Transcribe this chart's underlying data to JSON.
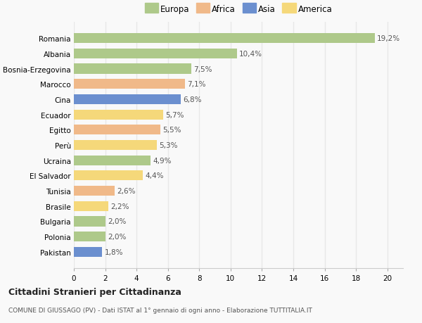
{
  "countries": [
    "Romania",
    "Albania",
    "Bosnia-Erzegovina",
    "Marocco",
    "Cina",
    "Ecuador",
    "Egitto",
    "Perù",
    "Ucraina",
    "El Salvador",
    "Tunisia",
    "Brasile",
    "Bulgaria",
    "Polonia",
    "Pakistan"
  ],
  "values": [
    19.2,
    10.4,
    7.5,
    7.1,
    6.8,
    5.7,
    5.5,
    5.3,
    4.9,
    4.4,
    2.6,
    2.2,
    2.0,
    2.0,
    1.8
  ],
  "labels": [
    "19,2%",
    "10,4%",
    "7,5%",
    "7,1%",
    "6,8%",
    "5,7%",
    "5,5%",
    "5,3%",
    "4,9%",
    "4,4%",
    "2,6%",
    "2,2%",
    "2,0%",
    "2,0%",
    "1,8%"
  ],
  "colors": [
    "#aec98a",
    "#aec98a",
    "#aec98a",
    "#f0b989",
    "#6b8fcf",
    "#f5d87a",
    "#f0b989",
    "#f5d87a",
    "#aec98a",
    "#f5d87a",
    "#f0b989",
    "#f5d87a",
    "#aec98a",
    "#aec98a",
    "#6b8fcf"
  ],
  "legend": {
    "Europa": "#aec98a",
    "Africa": "#f0b989",
    "Asia": "#6b8fcf",
    "America": "#f5d87a"
  },
  "title1": "Cittadini Stranieri per Cittadinanza",
  "title2": "COMUNE DI GIUSSAGO (PV) - Dati ISTAT al 1° gennaio di ogni anno - Elaborazione TUTTITALIA.IT",
  "xlim": [
    0,
    21
  ],
  "xticks": [
    0,
    2,
    4,
    6,
    8,
    10,
    12,
    14,
    16,
    18,
    20
  ],
  "background_color": "#f9f9f9",
  "grid_color": "#e8e8e8",
  "bar_height": 0.65
}
